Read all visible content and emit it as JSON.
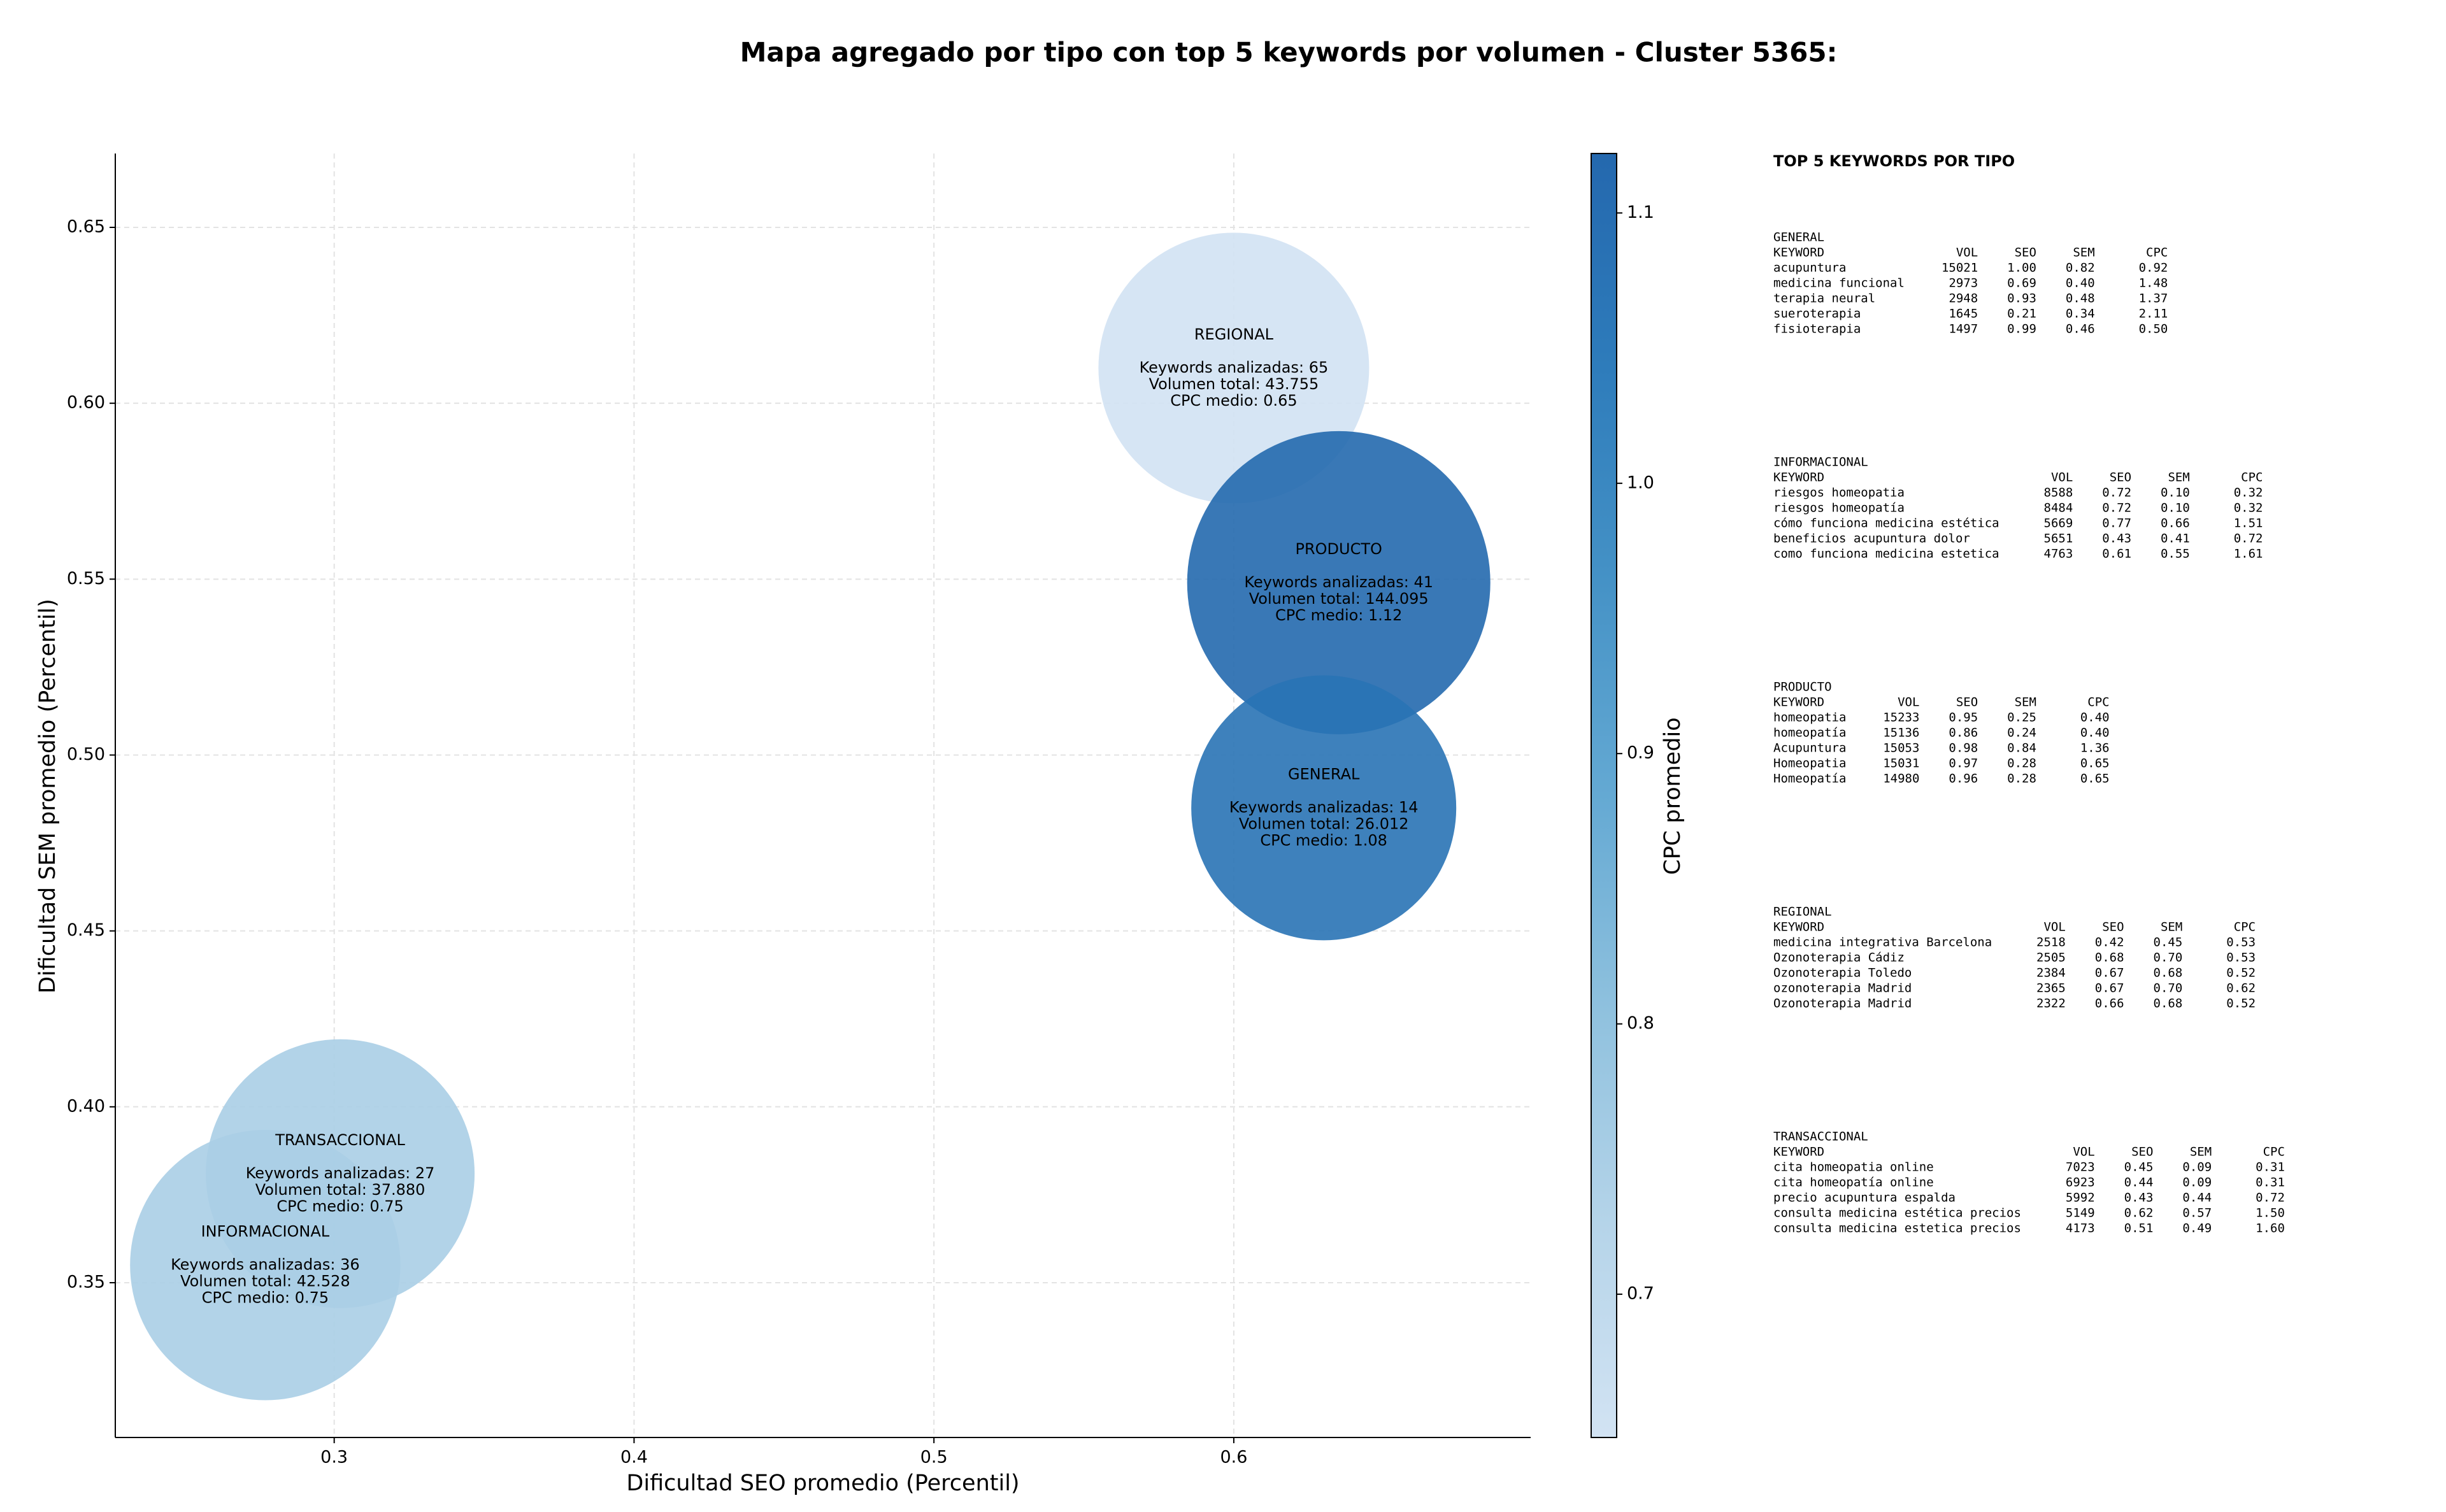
{
  "chart_data": {
    "type": "bubble",
    "title": "Mapa agregado por tipo con top 5 keywords por volumen - Cluster 5365:",
    "x_label": "Dificultad SEO promedio (Percentil)",
    "y_label": "Dificultad SEM promedio (Percentil)",
    "xlim": [
      0.227,
      0.699
    ],
    "ylim": [
      0.306,
      0.671
    ],
    "xticks": [
      0.3,
      0.4,
      0.5,
      0.6
    ],
    "yticks": [
      0.35,
      {
        "value": 0.4,
        "label": "0.40"
      },
      0.45,
      {
        "value": 0.5,
        "label": "0.50"
      },
      0.55,
      {
        "value": 0.6,
        "label": "0.60"
      },
      0.65
    ],
    "grid": true,
    "names": [
      "REGIONAL",
      "PRODUCTO",
      "GENERAL",
      "TRANSACCIONAL",
      "INFORMACIONAL"
    ],
    "x": [
      0.6,
      0.635,
      0.63,
      0.302,
      0.277
    ],
    "values": [
      0.61,
      0.549,
      0.485,
      0.381,
      0.355
    ],
    "sizes": [
      43755,
      144095,
      26012,
      37880,
      42528
    ],
    "cpc": [
      0.65,
      1.12,
      1.08,
      0.75,
      0.75
    ],
    "annotations": [
      [
        "Keywords analizadas: 65",
        "Volumen total: 43.755",
        "CPC medio: 0.65"
      ],
      [
        "Keywords analizadas: 41",
        "Volumen total: 144.095",
        "CPC medio: 1.12"
      ],
      [
        "Keywords analizadas: 14",
        "Volumen total: 26.012",
        "CPC medio: 1.08"
      ],
      [
        "Keywords analizadas: 27",
        "Volumen total: 37.880",
        "CPC medio: 0.75"
      ],
      [
        "Keywords analizadas: 36",
        "Volumen total: 42.528",
        "CPC medio: 0.75"
      ]
    ],
    "colorbar": {
      "label": "CPC promedio",
      "lim": [
        0.647,
        1.122
      ],
      "ticks": [
        0.7,
        0.8,
        0.9,
        {
          "value": 1,
          "label": "1.0"
        },
        1.1
      ],
      "colormap": [
        "#d2e3f3",
        "#b5d4e9",
        "#8fc1de",
        "#64a9d3",
        "#4592c6",
        "#2e7cbb",
        "#2468ae"
      ]
    }
  },
  "keyword_panel": {
    "title": "TOP 5 KEYWORDS POR TIPO",
    "groups": [
      {
        "name": "GENERAL",
        "header": [
          "KEYWORD",
          "VOL",
          "SEO",
          "SEM",
          "CPC"
        ],
        "rows": [
          [
            "acupuntura",
            "15021",
            "1.00",
            "0.82",
            "0.92"
          ],
          [
            "medicina funcional",
            "2973",
            "0.69",
            "0.40",
            "1.48"
          ],
          [
            "terapia neural",
            "2948",
            "0.93",
            "0.48",
            "1.37"
          ],
          [
            "sueroterapia",
            "1645",
            "0.21",
            "0.34",
            "2.11"
          ],
          [
            "fisioterapia",
            "1497",
            "0.99",
            "0.46",
            "0.50"
          ]
        ]
      },
      {
        "name": "INFORMACIONAL",
        "header": [
          "KEYWORD",
          "VOL",
          "SEO",
          "SEM",
          "CPC"
        ],
        "rows": [
          [
            "riesgos homeopatia",
            "8588",
            "0.72",
            "0.10",
            "0.32"
          ],
          [
            "riesgos homeopatía",
            "8484",
            "0.72",
            "0.10",
            "0.32"
          ],
          [
            "cómo funciona medicina estética",
            "5669",
            "0.77",
            "0.66",
            "1.51"
          ],
          [
            "beneficios acupuntura dolor",
            "5651",
            "0.43",
            "0.41",
            "0.72"
          ],
          [
            "como funciona medicina estetica",
            "4763",
            "0.61",
            "0.55",
            "1.61"
          ]
        ]
      },
      {
        "name": "PRODUCTO",
        "header": [
          "KEYWORD",
          "VOL",
          "SEO",
          "SEM",
          "CPC"
        ],
        "rows": [
          [
            "homeopatia",
            "15233",
            "0.95",
            "0.25",
            "0.40"
          ],
          [
            "homeopatía",
            "15136",
            "0.86",
            "0.24",
            "0.40"
          ],
          [
            "Acupuntura",
            "15053",
            "0.98",
            "0.84",
            "1.36"
          ],
          [
            "Homeopatia",
            "15031",
            "0.97",
            "0.28",
            "0.65"
          ],
          [
            "Homeopatía",
            "14980",
            "0.96",
            "0.28",
            "0.65"
          ]
        ]
      },
      {
        "name": "REGIONAL",
        "header": [
          "KEYWORD",
          "VOL",
          "SEO",
          "SEM",
          "CPC"
        ],
        "rows": [
          [
            "medicina integrativa Barcelona",
            "2518",
            "0.42",
            "0.45",
            "0.53"
          ],
          [
            "Ozonoterapia Cádiz",
            "2505",
            "0.68",
            "0.70",
            "0.53"
          ],
          [
            "Ozonoterapia Toledo",
            "2384",
            "0.67",
            "0.68",
            "0.52"
          ],
          [
            "ozonoterapia Madrid",
            "2365",
            "0.67",
            "0.70",
            "0.62"
          ],
          [
            "Ozonoterapia Madrid",
            "2322",
            "0.66",
            "0.68",
            "0.52"
          ]
        ]
      },
      {
        "name": "TRANSACCIONAL",
        "header": [
          "KEYWORD",
          "VOL",
          "SEO",
          "SEM",
          "CPC"
        ],
        "rows": [
          [
            "cita homeopatia online",
            "7023",
            "0.45",
            "0.09",
            "0.31"
          ],
          [
            "cita homeopatía online",
            "6923",
            "0.44",
            "0.09",
            "0.31"
          ],
          [
            "precio acupuntura espalda",
            "5992",
            "0.43",
            "0.44",
            "0.72"
          ],
          [
            "consulta medicina estética precios",
            "5149",
            "0.62",
            "0.57",
            "1.50"
          ],
          [
            "consulta medicina estetica precios",
            "4173",
            "0.51",
            "0.49",
            "1.60"
          ]
        ]
      }
    ]
  }
}
